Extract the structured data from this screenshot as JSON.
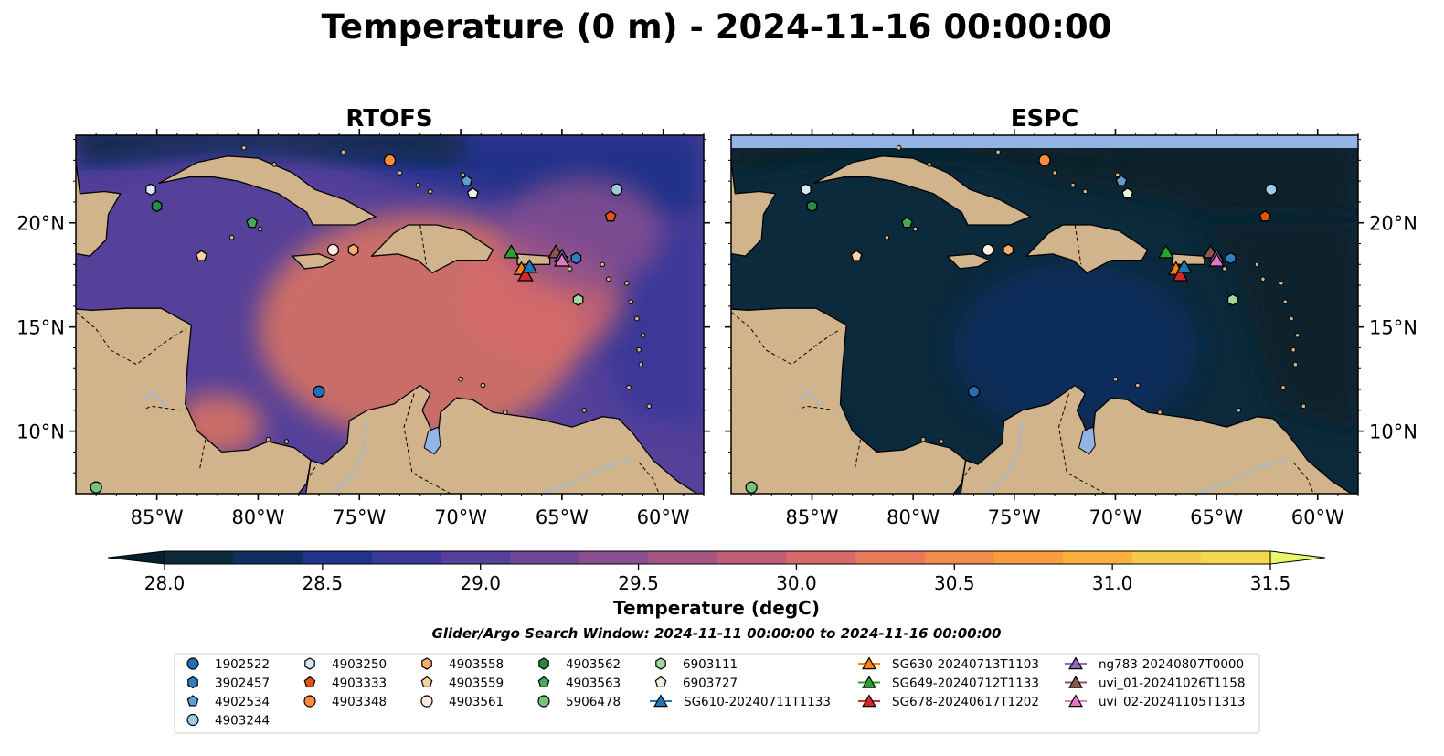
{
  "figure": {
    "title": "Temperature (0 m) - 2024-11-16 00:00:00",
    "search_window": "Glider/Argo Search Window: 2024-11-11 00:00:00 to 2024-11-16 00:00:00"
  },
  "map_extent": {
    "lon_min": -89.0,
    "lon_max": -58.0,
    "lat_min": 7.0,
    "lat_max": 24.2
  },
  "panels": [
    {
      "id": "rtofs",
      "title": "RTOFS",
      "tone": [
        {
          "lon": -72,
          "lat": 15,
          "r": 8,
          "shift": 1.6
        },
        {
          "lon": -66,
          "lat": 16.3,
          "r": 4,
          "shift": 1.2
        },
        {
          "lon": -82,
          "lat": 10.3,
          "r": 2.2,
          "shift": 1.6
        },
        {
          "lon": -64,
          "lat": 19.5,
          "r": 4,
          "shift": 0.6
        }
      ],
      "base_offset": 0.0
    },
    {
      "id": "espc",
      "title": "ESPC",
      "tone": [
        {
          "lon": -72,
          "lat": 14,
          "r": 6,
          "shift": 0.3
        }
      ],
      "base_offset": -0.9
    }
  ],
  "axes": {
    "lon_ticks": [
      {
        "value": -85,
        "label": "85°W"
      },
      {
        "value": -80,
        "label": "80°W"
      },
      {
        "value": -75,
        "label": "75°W"
      },
      {
        "value": -70,
        "label": "70°W"
      },
      {
        "value": -65,
        "label": "65°W"
      },
      {
        "value": -60,
        "label": "60°W"
      }
    ],
    "lat_ticks": [
      {
        "value": 20,
        "label": "20°N"
      },
      {
        "value": 15,
        "label": "15°N"
      },
      {
        "value": 10,
        "label": "10°N"
      }
    ]
  },
  "colorbar": {
    "label": "Temperature (degC)",
    "min": 28.0,
    "max": 31.5,
    "step": 0.25,
    "ticks": [
      "28.0",
      "28.5",
      "29.0",
      "29.5",
      "30.0",
      "30.5",
      "31.0",
      "31.5"
    ],
    "colors": [
      "#0b2a3c",
      "#0e2f63",
      "#22338a",
      "#3a3999",
      "#55409a",
      "#6e4797",
      "#8a4f8f",
      "#a45682",
      "#be5f77",
      "#d66a6b",
      "#e8795b",
      "#f38b4b",
      "#f89c3e",
      "#fbb23c",
      "#f5ca4a",
      "#f5d94c"
    ],
    "under_color": "#07202c",
    "over_color": "#e9f86a"
  },
  "colors": {
    "land": "#d2b48c",
    "lake": "#92b5e3",
    "river": "#9db9d6",
    "deep_ocean": "#08222e"
  },
  "legend": {
    "columns": [
      [
        {
          "label": "1902522",
          "shape": "circle",
          "color": "#1f6fb2"
        },
        {
          "label": "3902457",
          "shape": "hexagon",
          "color": "#2f7fc1"
        },
        {
          "label": "4902534",
          "shape": "pentagon",
          "color": "#5f9ed1"
        },
        {
          "label": "4903244",
          "shape": "circle",
          "color": "#9ecae1"
        }
      ],
      [
        {
          "label": "4903250",
          "shape": "hexagon",
          "color": "#dbe9f6"
        },
        {
          "label": "4903333",
          "shape": "pentagon",
          "color": "#e6550d"
        },
        {
          "label": "4903348",
          "shape": "circle",
          "color": "#fd8d3c"
        }
      ],
      [
        {
          "label": "4903558",
          "shape": "hexagon",
          "color": "#fdae6b"
        },
        {
          "label": "4903559",
          "shape": "pentagon",
          "color": "#fdd0a2"
        },
        {
          "label": "4903561",
          "shape": "circle",
          "color": "#feedde"
        }
      ],
      [
        {
          "label": "4903562",
          "shape": "hexagon",
          "color": "#238b45"
        },
        {
          "label": "4903563",
          "shape": "pentagon",
          "color": "#41ab5d"
        },
        {
          "label": "5906478",
          "shape": "circle",
          "color": "#74c476"
        }
      ],
      [
        {
          "label": "6903111",
          "shape": "hexagon",
          "color": "#a1d99b"
        },
        {
          "label": "6903727",
          "shape": "pentagon",
          "color": "#e5f5e0"
        },
        {
          "label": "SG610-20240711T1133",
          "shape": "triangle",
          "color": "#1f77b4",
          "line": true
        }
      ],
      [
        {
          "label": "SG630-20240713T1103",
          "shape": "triangle",
          "color": "#ff7f0e",
          "line": true
        },
        {
          "label": "SG649-20240712T1133",
          "shape": "triangle",
          "color": "#2ca02c",
          "line": true
        },
        {
          "label": "SG678-20240617T1202",
          "shape": "triangle",
          "color": "#d62728",
          "line": true
        }
      ],
      [
        {
          "label": "ng783-20240807T0000",
          "shape": "triangle",
          "color": "#9467bd",
          "line": true
        },
        {
          "label": "uvi_01-20241026T1158",
          "shape": "triangle",
          "color": "#8c564b",
          "line": true
        },
        {
          "label": "uvi_02-20241105T1313",
          "shape": "triangle",
          "color": "#e377c2",
          "line": true
        }
      ]
    ]
  },
  "platforms": [
    {
      "id": "4903348",
      "lon": -73.5,
      "lat": 23.0
    },
    {
      "id": "4903250",
      "lon": -85.3,
      "lat": 21.6
    },
    {
      "id": "4902534",
      "lon": -69.7,
      "lat": 22.0
    },
    {
      "id": "6903727",
      "lon": -69.4,
      "lat": 21.4
    },
    {
      "id": "4903244",
      "lon": -62.3,
      "lat": 21.6
    },
    {
      "id": "4903562",
      "lon": -85.0,
      "lat": 20.8
    },
    {
      "id": "4903333",
      "lon": -62.6,
      "lat": 20.3
    },
    {
      "id": "4903563",
      "lon": -80.3,
      "lat": 20.0
    },
    {
      "id": "4903561",
      "lon": -76.3,
      "lat": 18.7
    },
    {
      "id": "4903558",
      "lon": -75.3,
      "lat": 18.7
    },
    {
      "id": "4903559",
      "lon": -82.8,
      "lat": 18.4
    },
    {
      "id": "3902457",
      "lon": -64.3,
      "lat": 18.3
    },
    {
      "id": "6903111",
      "lon": -64.2,
      "lat": 16.3
    },
    {
      "id": "1902522",
      "lon": -77.0,
      "lat": 11.9
    },
    {
      "id": "5906478",
      "lon": -88.0,
      "lat": 7.3
    },
    {
      "id": "SG649-20240712T1133",
      "lon": -67.5,
      "lat": 18.6
    },
    {
      "id": "SG630-20240713T1103",
      "lon": -67.0,
      "lat": 17.8
    },
    {
      "id": "SG678-20240617T1202",
      "lon": -66.8,
      "lat": 17.5
    },
    {
      "id": "SG610-20240711T1133",
      "lon": -66.6,
      "lat": 17.9
    },
    {
      "id": "uvi_01-20241026T1158",
      "lon": -65.3,
      "lat": 18.6
    },
    {
      "id": "ng783-20240807T0000",
      "lon": -65.0,
      "lat": 18.4
    },
    {
      "id": "uvi_02-20241105T1313",
      "lon": -65.0,
      "lat": 18.2
    }
  ]
}
